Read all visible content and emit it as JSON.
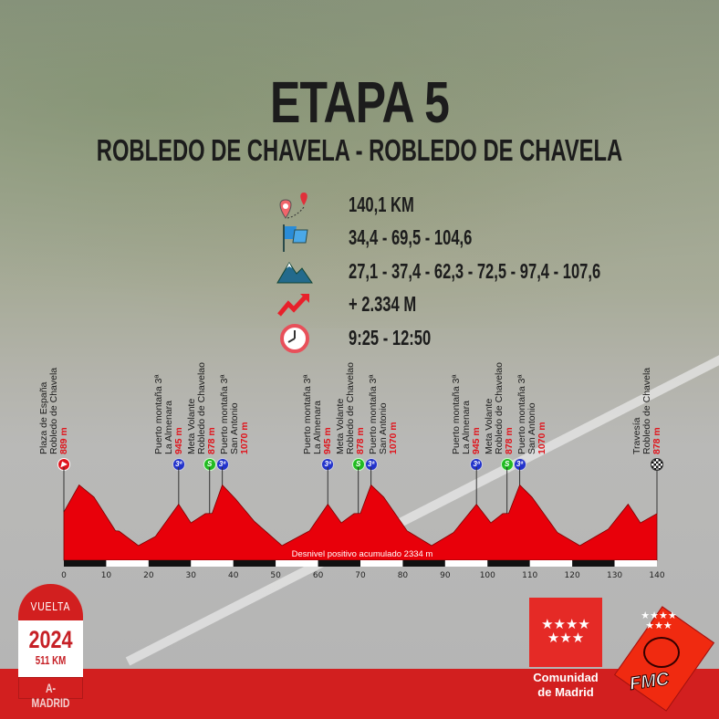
{
  "header": {
    "title": "ETAPA 5",
    "subtitle": "ROBLEDO DE CHAVELA - ROBLEDO DE CHAVELA"
  },
  "info": [
    {
      "icon": "route-pin-icon",
      "text": "140,1 KM"
    },
    {
      "icon": "sprint-flag-icon",
      "text": "34,4 - 69,5 - 104,6"
    },
    {
      "icon": "mountain-icon",
      "text": "27,1 - 37,4 - 62,3 - 72,5 - 97,4 - 107,6"
    },
    {
      "icon": "elevation-gain-icon",
      "text": "+ 2.334 M"
    },
    {
      "icon": "clock-icon",
      "text": "9:25 - 12:50"
    }
  ],
  "colors": {
    "profile": "#e8000a",
    "accent": "#d21f1f",
    "kom": "#2233cc",
    "sprint": "#22bb22"
  },
  "chart_data": {
    "type": "area",
    "title": "",
    "xlabel": "",
    "ylabel": "",
    "xlim": [
      0,
      140
    ],
    "ylim": [
      562,
      1100
    ],
    "x_ticks": [
      0,
      10,
      20,
      30,
      40,
      50,
      60,
      70,
      80,
      90,
      100,
      110,
      120,
      130,
      140
    ],
    "annotation": "Desnivel positivo acumulado 2334 m",
    "profile": [
      [
        0,
        889
      ],
      [
        3.6,
        1072
      ],
      [
        7.1,
        990
      ],
      [
        12.2,
        762
      ],
      [
        13,
        760
      ],
      [
        17.6,
        661
      ],
      [
        21.6,
        723
      ],
      [
        27.1,
        942
      ],
      [
        30,
        815
      ],
      [
        33.4,
        878
      ],
      [
        35,
        880
      ],
      [
        37.4,
        1072
      ],
      [
        40.5,
        979
      ],
      [
        45,
        824
      ],
      [
        51.5,
        661
      ],
      [
        58,
        762
      ],
      [
        62.3,
        942
      ],
      [
        65.5,
        815
      ],
      [
        68.5,
        878
      ],
      [
        70,
        880
      ],
      [
        72.5,
        1072
      ],
      [
        75.5,
        990
      ],
      [
        81,
        762
      ],
      [
        86.8,
        661
      ],
      [
        92,
        750
      ],
      [
        97.4,
        942
      ],
      [
        100.8,
        815
      ],
      [
        103.6,
        878
      ],
      [
        105,
        880
      ],
      [
        107.6,
        1072
      ],
      [
        110.5,
        990
      ],
      [
        116.5,
        750
      ],
      [
        121.8,
        661
      ],
      [
        128.5,
        772
      ],
      [
        133.2,
        942
      ],
      [
        136.1,
        815
      ],
      [
        140,
        878
      ]
    ],
    "markers": [
      {
        "km": 0,
        "type": "start",
        "lines": [
          "Plaza de España",
          "Robledo de Chavela"
        ],
        "elev": "889 m",
        "icon": "start-icon"
      },
      {
        "km": 27.1,
        "type": "kom",
        "lines": [
          "Puerto montaña 3ª",
          "La Almenara"
        ],
        "elev": "945 m",
        "icon": "kom-icon",
        "badge": "3ª"
      },
      {
        "km": 34.4,
        "type": "sprint",
        "lines": [
          "Meta Volante",
          "Robledo de Chavelao"
        ],
        "elev": "878 m",
        "icon": "sprint-icon",
        "badge": "S"
      },
      {
        "km": 37.4,
        "type": "kom",
        "lines": [
          "Puerto montaña 3ª",
          "San Antonio"
        ],
        "elev": "1070 m",
        "icon": "kom-icon",
        "badge": "3ª"
      },
      {
        "km": 62.3,
        "type": "kom",
        "lines": [
          "Puerto montaña 3ª",
          "La Almenara"
        ],
        "elev": "945 m",
        "icon": "kom-icon",
        "badge": "3ª"
      },
      {
        "km": 69.5,
        "type": "sprint",
        "lines": [
          "Meta Volante",
          "Robledo de Chavelao"
        ],
        "elev": "878 m",
        "icon": "sprint-icon",
        "badge": "S"
      },
      {
        "km": 72.5,
        "type": "kom",
        "lines": [
          "Puerto montaña 3ª",
          "San Antonio"
        ],
        "elev": "1070 m",
        "icon": "kom-icon",
        "badge": "3ª"
      },
      {
        "km": 97.4,
        "type": "kom",
        "lines": [
          "Puerto montaña 3ª",
          "La Almenara"
        ],
        "elev": "945 m",
        "icon": "kom-icon",
        "badge": "3ª"
      },
      {
        "km": 104.6,
        "type": "sprint",
        "lines": [
          "Meta Volante",
          "Robledo de Chavelao"
        ],
        "elev": "878 m",
        "icon": "sprint-icon",
        "badge": "S"
      },
      {
        "km": 107.6,
        "type": "kom",
        "lines": [
          "Puerto montaña 3ª",
          "San Antonio"
        ],
        "elev": "1070 m",
        "icon": "kom-icon",
        "badge": "3ª"
      },
      {
        "km": 140,
        "type": "finish",
        "lines": [
          "Travesía",
          "Robledo de Chavela"
        ],
        "elev": "878 m",
        "icon": "finish-icon"
      }
    ]
  },
  "badge": {
    "brand": "VUELTA",
    "year": "2024",
    "distance": "511 KM",
    "name": "A-MADRID"
  },
  "logos": {
    "comunidad_line1": "Comunidad",
    "comunidad_line2": "de Madrid",
    "fmc": "FMC"
  }
}
